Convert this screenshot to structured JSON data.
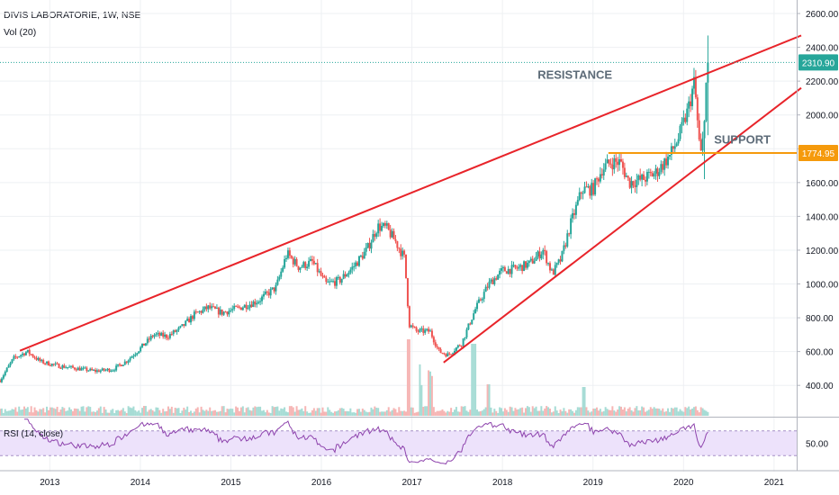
{
  "header": {
    "title": "DIVIS LABORATORIE, 1W, NSE",
    "volume_label": "Vol (20)"
  },
  "colors": {
    "candle_up": "#26a69a",
    "candle_down": "#ef5350",
    "trendline": "#e8242a",
    "support_line": "#f59a0c",
    "last_price_badge": "#26a69a",
    "rsi_line": "#8e44ad",
    "rsi_band": "#ede2fb",
    "grid": "#eef0f3",
    "axis_text": "#131722",
    "annotation_text": "#5d6b78"
  },
  "chart_data": [
    {
      "type": "candlestick",
      "title": "DIVIS LABORATORIE, 1W, NSE",
      "y_axis": {
        "ticks": [
          "400.00",
          "600.00",
          "800.00",
          "1000.00",
          "1200.00",
          "1400.00",
          "1600.00",
          "1800.00",
          "2000.00",
          "2200.00",
          "2400.00",
          "2600.00"
        ],
        "range": [
          220,
          2680
        ]
      },
      "x_axis": {
        "ticks": [
          "2013",
          "2014",
          "2015",
          "2016",
          "2017",
          "2018",
          "2019",
          "2020",
          "2021"
        ],
        "range": [
          2012.45,
          2021.25
        ]
      },
      "price_path": [
        [
          2012.45,
          430
        ],
        [
          2012.6,
          560
        ],
        [
          2012.75,
          600
        ],
        [
          2012.9,
          540
        ],
        [
          2013.1,
          515
        ],
        [
          2013.3,
          500
        ],
        [
          2013.5,
          485
        ],
        [
          2013.7,
          495
        ],
        [
          2013.85,
          545
        ],
        [
          2014.0,
          620
        ],
        [
          2014.15,
          700
        ],
        [
          2014.3,
          690
        ],
        [
          2014.45,
          740
        ],
        [
          2014.6,
          820
        ],
        [
          2014.75,
          860
        ],
        [
          2014.9,
          830
        ],
        [
          2015.1,
          860
        ],
        [
          2015.3,
          900
        ],
        [
          2015.5,
          980
        ],
        [
          2015.62,
          1180
        ],
        [
          2015.75,
          1100
        ],
        [
          2015.9,
          1130
        ],
        [
          2016.05,
          1000
        ],
        [
          2016.2,
          1020
        ],
        [
          2016.35,
          1100
        ],
        [
          2016.5,
          1200
        ],
        [
          2016.62,
          1340
        ],
        [
          2016.72,
          1330
        ],
        [
          2016.82,
          1250
        ],
        [
          2016.92,
          1150
        ],
        [
          2016.97,
          760
        ],
        [
          2017.05,
          720
        ],
        [
          2017.2,
          720
        ],
        [
          2017.3,
          600
        ],
        [
          2017.4,
          580
        ],
        [
          2017.55,
          650
        ],
        [
          2017.7,
          850
        ],
        [
          2017.85,
          1000
        ],
        [
          2018.0,
          1080
        ],
        [
          2018.15,
          1090
        ],
        [
          2018.3,
          1120
        ],
        [
          2018.45,
          1200
        ],
        [
          2018.55,
          1060
        ],
        [
          2018.65,
          1150
        ],
        [
          2018.75,
          1350
        ],
        [
          2018.88,
          1560
        ],
        [
          2019.0,
          1560
        ],
        [
          2019.1,
          1680
        ],
        [
          2019.2,
          1720
        ],
        [
          2019.3,
          1720
        ],
        [
          2019.4,
          1600
        ],
        [
          2019.55,
          1620
        ],
        [
          2019.7,
          1660
        ],
        [
          2019.85,
          1760
        ],
        [
          2019.95,
          1870
        ],
        [
          2020.05,
          2030
        ],
        [
          2020.12,
          2200
        ],
        [
          2020.17,
          1850
        ],
        [
          2020.2,
          1740
        ],
        [
          2020.25,
          2180
        ],
        [
          2020.27,
          2310.9
        ]
      ],
      "last_price": "2310.90",
      "support_price": "1774.95",
      "annotations": [
        {
          "text": "RESISTANCE",
          "x": 2018.8,
          "y": 2215
        },
        {
          "text": "SUPPORT",
          "x": 2020.65,
          "y": 1830
        }
      ],
      "trendlines": [
        {
          "name": "resistance",
          "points": [
            [
              2012.67,
              605
            ],
            [
              2021.3,
              2470
            ]
          ]
        },
        {
          "name": "support",
          "points": [
            [
              2017.35,
              535
            ],
            [
              2021.3,
              2160
            ]
          ]
        }
      ],
      "horizontal_line": {
        "name": "support",
        "y": 1774.95,
        "x_start": 2019.17
      }
    },
    {
      "type": "line",
      "title": "RSI (14, close)",
      "y_axis": {
        "ticks": [
          "50.00"
        ],
        "range": [
          10,
          90
        ],
        "band": [
          30,
          70
        ]
      },
      "series_name": "RSI (14, close)"
    }
  ]
}
